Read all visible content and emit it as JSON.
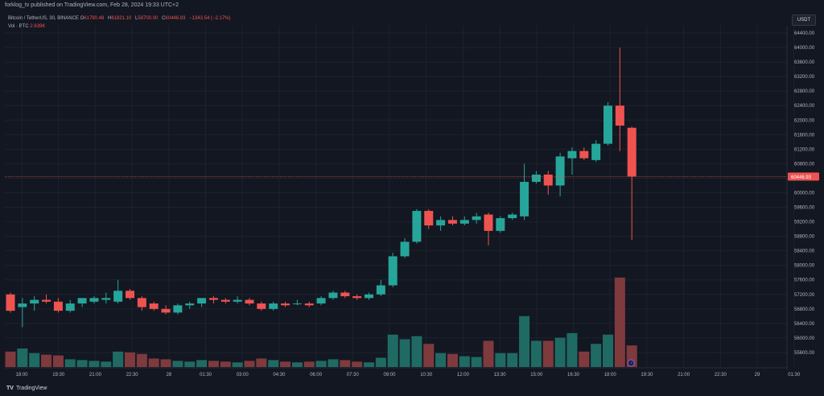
{
  "publisher_line": "forklog_tv published on TradingView.com, Feb 28, 2024 19:33 UTC+2",
  "symbol_line": "Bitcoin / TetherUS, 30, BINANCE",
  "ohlc": {
    "o_label": "O",
    "o": "61790.48",
    "h_label": "H",
    "h": "61821.10",
    "l_label": "L",
    "l": "58700.00",
    "c_label": "C",
    "c": "60446.93",
    "change": "−1343.54 (−2.17%)"
  },
  "volume": {
    "label": "Vol · BTC",
    "value": "2.639K"
  },
  "currency_button": "USDT",
  "footer_brand": "TradingView",
  "colors": {
    "up": "#26a69a",
    "down": "#ef5350",
    "vol_up": "#1f6b64",
    "vol_down": "#7f3a3d",
    "bg": "#131722"
  },
  "chart_data": {
    "type": "candlestick",
    "last_price_label": "60446.93",
    "last_price": 60446.93,
    "ylim": [
      55200,
      64600
    ],
    "y_ticks": [
      "64400.00",
      "64000.00",
      "63600.00",
      "63200.00",
      "62800.00",
      "62400.00",
      "62000.00",
      "61600.00",
      "61200.00",
      "60800.00",
      "60400.00",
      "60000.00",
      "59600.00",
      "59200.00",
      "58800.00",
      "58400.00",
      "58000.00",
      "57600.00",
      "57200.00",
      "56800.00",
      "56400.00",
      "56000.00",
      "55600.00"
    ],
    "x_ticks": [
      "18:00",
      "19:30",
      "21:00",
      "22:30",
      "28",
      "01:30",
      "03:00",
      "04:30",
      "06:00",
      "07:30",
      "09:00",
      "10:30",
      "12:00",
      "13:30",
      "15:00",
      "16:30",
      "18:00",
      "19:30",
      "21:00",
      "22:30",
      "29",
      "01:30"
    ],
    "candles": [
      {
        "o": 57200,
        "h": 57250,
        "l": 56700,
        "c": 56750,
        "v": 1.0
      },
      {
        "o": 56850,
        "h": 57100,
        "l": 56300,
        "c": 56950,
        "v": 1.2
      },
      {
        "o": 56950,
        "h": 57150,
        "l": 56750,
        "c": 57050,
        "v": 0.9
      },
      {
        "o": 57050,
        "h": 57200,
        "l": 56950,
        "c": 57000,
        "v": 0.8
      },
      {
        "o": 57000,
        "h": 57100,
        "l": 56700,
        "c": 56750,
        "v": 0.75
      },
      {
        "o": 56750,
        "h": 57050,
        "l": 56700,
        "c": 56950,
        "v": 0.5
      },
      {
        "o": 56950,
        "h": 57100,
        "l": 56850,
        "c": 57100,
        "v": 0.45
      },
      {
        "o": 57000,
        "h": 57150,
        "l": 56950,
        "c": 57100,
        "v": 0.4
      },
      {
        "o": 57050,
        "h": 57250,
        "l": 56950,
        "c": 57100,
        "v": 0.35
      },
      {
        "o": 57000,
        "h": 57600,
        "l": 56950,
        "c": 57300,
        "v": 1.0
      },
      {
        "o": 57300,
        "h": 57350,
        "l": 57050,
        "c": 57100,
        "v": 0.95
      },
      {
        "o": 57100,
        "h": 57150,
        "l": 56750,
        "c": 56850,
        "v": 0.85
      },
      {
        "o": 56950,
        "h": 57000,
        "l": 56750,
        "c": 56800,
        "v": 0.55
      },
      {
        "o": 56800,
        "h": 56900,
        "l": 56650,
        "c": 56700,
        "v": 0.5
      },
      {
        "o": 56700,
        "h": 56950,
        "l": 56650,
        "c": 56900,
        "v": 0.4
      },
      {
        "o": 56900,
        "h": 57000,
        "l": 56800,
        "c": 56950,
        "v": 0.35
      },
      {
        "o": 56950,
        "h": 57100,
        "l": 56850,
        "c": 57100,
        "v": 0.45
      },
      {
        "o": 57100,
        "h": 57150,
        "l": 56950,
        "c": 57050,
        "v": 0.4
      },
      {
        "o": 57050,
        "h": 57100,
        "l": 56950,
        "c": 57000,
        "v": 0.35
      },
      {
        "o": 57000,
        "h": 57150,
        "l": 56950,
        "c": 57050,
        "v": 0.3
      },
      {
        "o": 57050,
        "h": 57100,
        "l": 56900,
        "c": 56950,
        "v": 0.4
      },
      {
        "o": 56950,
        "h": 57000,
        "l": 56750,
        "c": 56800,
        "v": 0.55
      },
      {
        "o": 56800,
        "h": 57000,
        "l": 56750,
        "c": 56950,
        "v": 0.45
      },
      {
        "o": 56950,
        "h": 57000,
        "l": 56850,
        "c": 56900,
        "v": 0.35
      },
      {
        "o": 56950,
        "h": 57050,
        "l": 56900,
        "c": 56950,
        "v": 0.3
      },
      {
        "o": 56950,
        "h": 57000,
        "l": 56850,
        "c": 56900,
        "v": 0.35
      },
      {
        "o": 56950,
        "h": 57150,
        "l": 56900,
        "c": 57100,
        "v": 0.4
      },
      {
        "o": 57100,
        "h": 57300,
        "l": 57050,
        "c": 57250,
        "v": 0.5
      },
      {
        "o": 57250,
        "h": 57300,
        "l": 57100,
        "c": 57150,
        "v": 0.45
      },
      {
        "o": 57150,
        "h": 57200,
        "l": 57050,
        "c": 57100,
        "v": 0.35
      },
      {
        "o": 57100,
        "h": 57250,
        "l": 57050,
        "c": 57200,
        "v": 0.3
      },
      {
        "o": 57200,
        "h": 57600,
        "l": 57150,
        "c": 57450,
        "v": 0.6
      },
      {
        "o": 57450,
        "h": 58350,
        "l": 57400,
        "c": 58250,
        "v": 2.1
      },
      {
        "o": 58250,
        "h": 58750,
        "l": 58200,
        "c": 58650,
        "v": 1.8
      },
      {
        "o": 58650,
        "h": 59550,
        "l": 58600,
        "c": 59500,
        "v": 2.0
      },
      {
        "o": 59500,
        "h": 59550,
        "l": 59000,
        "c": 59100,
        "v": 1.5
      },
      {
        "o": 59100,
        "h": 59350,
        "l": 58950,
        "c": 59250,
        "v": 0.9
      },
      {
        "o": 59250,
        "h": 59350,
        "l": 59100,
        "c": 59150,
        "v": 0.85
      },
      {
        "o": 59150,
        "h": 59350,
        "l": 59100,
        "c": 59250,
        "v": 0.7
      },
      {
        "o": 59250,
        "h": 59450,
        "l": 59150,
        "c": 59350,
        "v": 0.65
      },
      {
        "o": 59400,
        "h": 59450,
        "l": 58550,
        "c": 58950,
        "v": 1.7
      },
      {
        "o": 58950,
        "h": 59350,
        "l": 58900,
        "c": 59300,
        "v": 0.9
      },
      {
        "o": 59300,
        "h": 59450,
        "l": 59250,
        "c": 59400,
        "v": 0.9
      },
      {
        "o": 59350,
        "h": 60800,
        "l": 59250,
        "c": 60300,
        "v": 3.3
      },
      {
        "o": 60300,
        "h": 60600,
        "l": 60250,
        "c": 60500,
        "v": 1.7
      },
      {
        "o": 60500,
        "h": 60600,
        "l": 59950,
        "c": 60200,
        "v": 1.7
      },
      {
        "o": 60200,
        "h": 61100,
        "l": 59900,
        "c": 61000,
        "v": 1.9
      },
      {
        "o": 60950,
        "h": 61250,
        "l": 60500,
        "c": 61150,
        "v": 2.2
      },
      {
        "o": 61150,
        "h": 61250,
        "l": 60900,
        "c": 60950,
        "v": 1.0
      },
      {
        "o": 60900,
        "h": 61450,
        "l": 60850,
        "c": 61350,
        "v": 1.5
      },
      {
        "o": 61350,
        "h": 62500,
        "l": 61300,
        "c": 62400,
        "v": 2.1
      },
      {
        "o": 62400,
        "h": 64000,
        "l": 61150,
        "c": 61850,
        "v": 5.8
      },
      {
        "o": 61790,
        "h": 61821,
        "l": 58700,
        "c": 60447,
        "v": 1.4
      }
    ]
  }
}
